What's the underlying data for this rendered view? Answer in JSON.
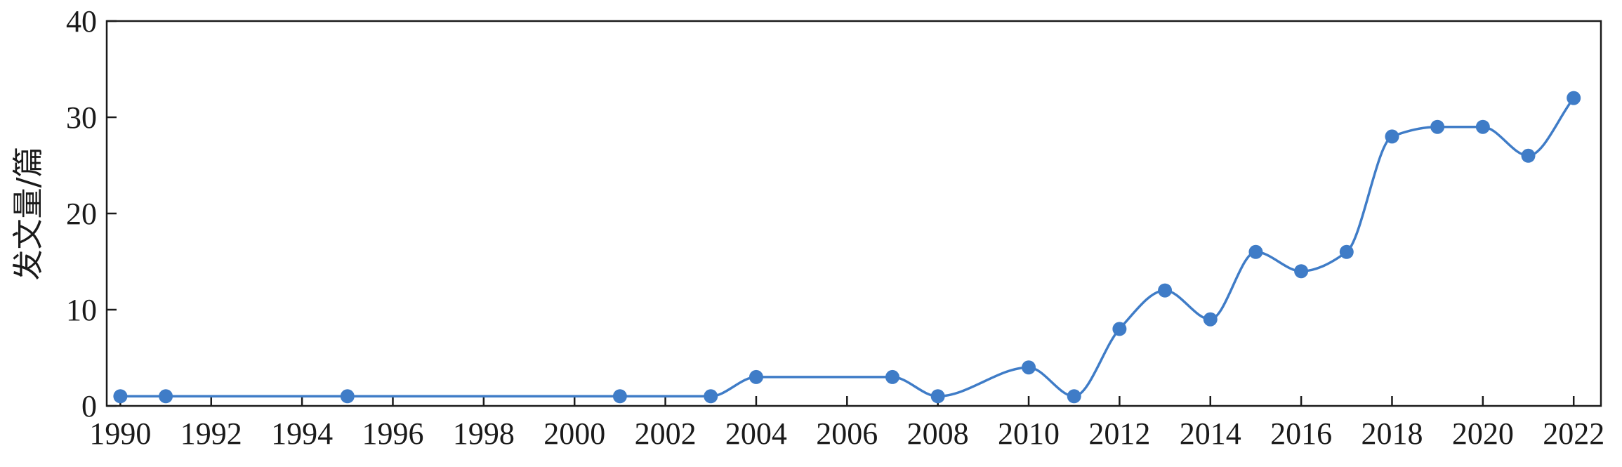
{
  "chart_data": {
    "type": "line",
    "title": "",
    "xlabel": "",
    "ylabel": "发文量/篇",
    "xlim": [
      1989.7,
      2022.6
    ],
    "ylim": [
      0,
      40
    ],
    "x_ticks": [
      1990,
      1992,
      1994,
      1996,
      1998,
      2000,
      2002,
      2004,
      2006,
      2008,
      2010,
      2012,
      2014,
      2016,
      2018,
      2020,
      2022
    ],
    "y_ticks": [
      0,
      10,
      20,
      30,
      40
    ],
    "x": [
      1990,
      1991,
      1995,
      2001,
      2003,
      2004,
      2007,
      2008,
      2010,
      2011,
      2012,
      2013,
      2014,
      2015,
      2016,
      2017,
      2018,
      2019,
      2020,
      2021,
      2022
    ],
    "series": [
      {
        "values": [
          1,
          1,
          1,
          1,
          1,
          3,
          3,
          1,
          4,
          1,
          8,
          12,
          9,
          16,
          14,
          16,
          28,
          29,
          29,
          26,
          32
        ],
        "color": "#3f7cc7"
      }
    ],
    "line_style": "smooth",
    "markers": "filled-circle",
    "grid": false,
    "legend": "none"
  }
}
